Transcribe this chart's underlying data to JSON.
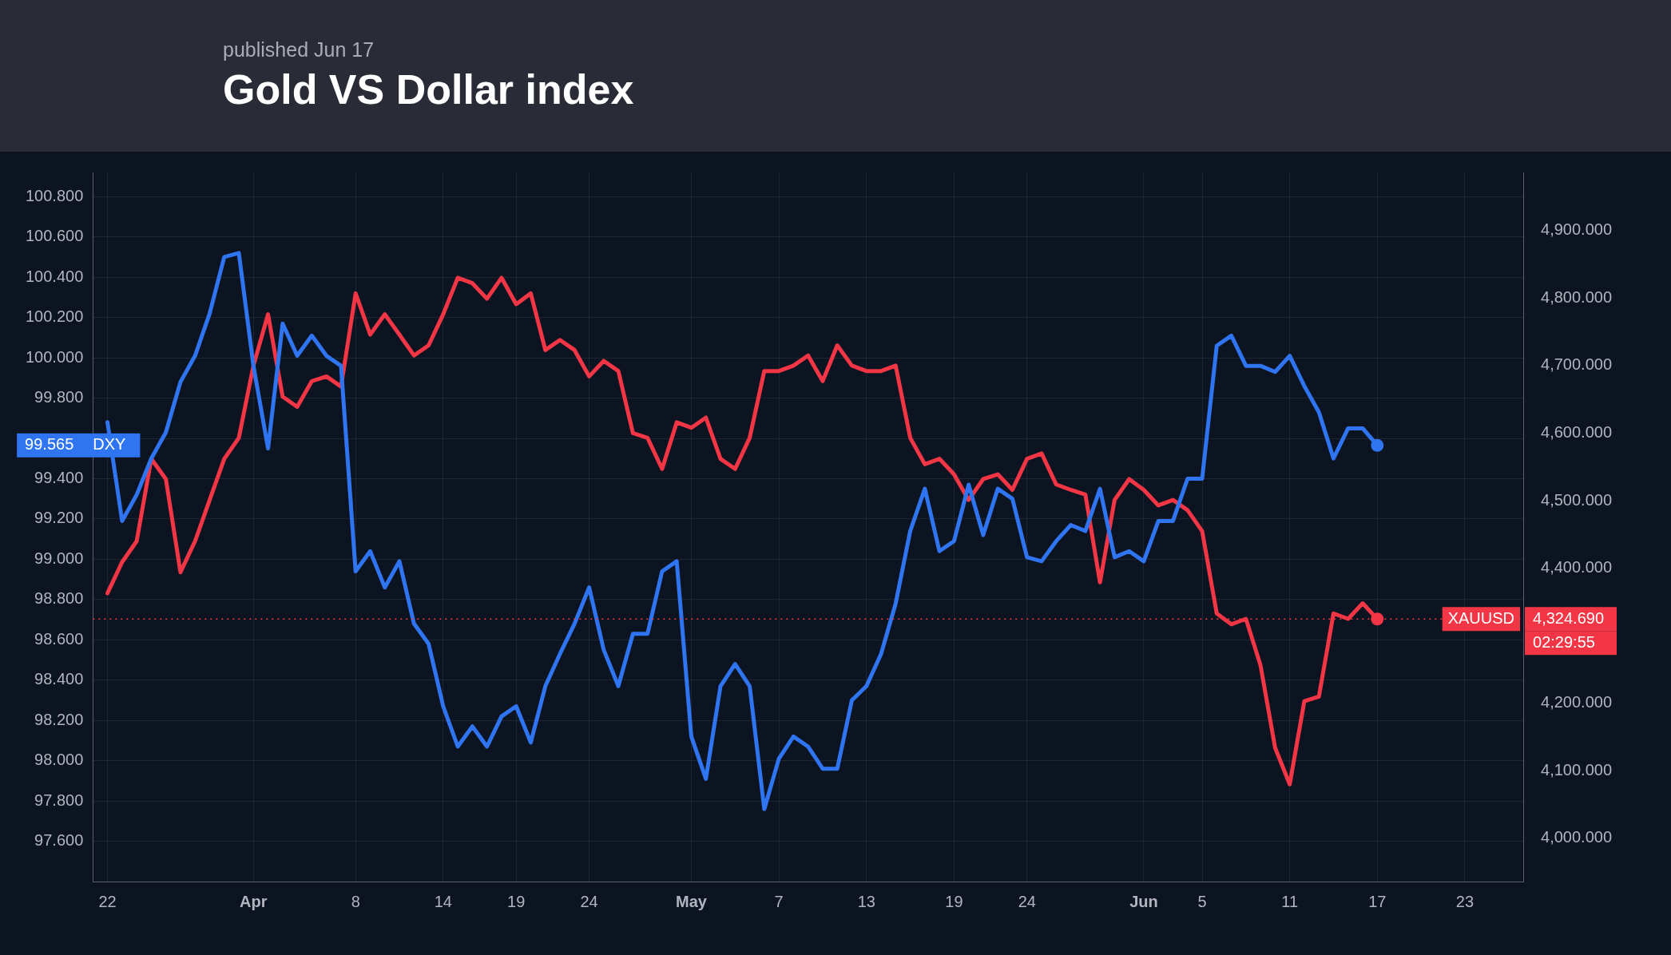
{
  "chart_data": {
    "type": "line",
    "title": "Gold VS Dollar index",
    "subtitle": "published Jun 17",
    "xlim": [
      "--03-21",
      "--06-27"
    ],
    "xticks": [
      {
        "value": "--03-22",
        "label": "22"
      },
      {
        "value": "--04-01",
        "label": "Apr"
      },
      {
        "value": "--04-08",
        "label": "8"
      },
      {
        "value": "--04-14",
        "label": "14"
      },
      {
        "value": "--04-19",
        "label": "19"
      },
      {
        "value": "--04-24",
        "label": "24"
      },
      {
        "value": "--05-01",
        "label": "May"
      },
      {
        "value": "--05-07",
        "label": "7"
      },
      {
        "value": "--05-13",
        "label": "13"
      },
      {
        "value": "--05-19",
        "label": "19"
      },
      {
        "value": "--05-24",
        "label": "24"
      },
      {
        "value": "--06-01",
        "label": "Jun"
      },
      {
        "value": "--06-05",
        "label": "5"
      },
      {
        "value": "--06-11",
        "label": "11"
      },
      {
        "value": "--06-17",
        "label": "17"
      },
      {
        "value": "--06-23",
        "label": "23"
      }
    ],
    "ylim": [
      97.4,
      100.92
    ],
    "yticks": [
      {
        "value": 97.6,
        "label": "97.600"
      },
      {
        "value": 97.8,
        "label": "97.800"
      },
      {
        "value": 98.0,
        "label": "98.000"
      },
      {
        "value": 98.2,
        "label": "98.200"
      },
      {
        "value": 98.4,
        "label": "98.400"
      },
      {
        "value": 98.6,
        "label": "98.600"
      },
      {
        "value": 98.8,
        "label": "98.800"
      },
      {
        "value": 99.0,
        "label": "99.000"
      },
      {
        "value": 99.2,
        "label": "99.200"
      },
      {
        "value": 99.4,
        "label": "99.400"
      },
      {
        "value": 99.6,
        "label": null
      },
      {
        "value": 99.8,
        "label": "99.800"
      },
      {
        "value": 100.0,
        "label": "100.000"
      },
      {
        "value": 100.2,
        "label": "100.200"
      },
      {
        "value": 100.4,
        "label": "100.400"
      },
      {
        "value": 100.6,
        "label": "100.600"
      },
      {
        "value": 100.8,
        "label": "100.800"
      }
    ],
    "y2lim": [
      3936,
      4986
    ],
    "y2ticks": [
      {
        "value": 4000,
        "label": "4,000.000"
      },
      {
        "value": 4100,
        "label": "4,100.000"
      },
      {
        "value": 4200,
        "label": "4,200.000"
      },
      {
        "value": 4400,
        "label": "4,400.000"
      },
      {
        "value": 4500,
        "label": "4,500.000"
      },
      {
        "value": 4600,
        "label": "4,600.000"
      },
      {
        "value": 4700,
        "label": "4,700.000"
      },
      {
        "value": 4800,
        "label": "4,800.000"
      },
      {
        "value": 4900,
        "label": "4,900.000"
      }
    ],
    "x": [
      "--03-22",
      "--03-23",
      "--03-24",
      "--03-25",
      "--03-26",
      "--03-27",
      "--03-28",
      "--03-29",
      "--03-30",
      "--03-31",
      "--04-01",
      "--04-02",
      "--04-03",
      "--04-04",
      "--04-05",
      "--04-06",
      "--04-07",
      "--04-08",
      "--04-09",
      "--04-10",
      "--04-11",
      "--04-12",
      "--04-13",
      "--04-14",
      "--04-15",
      "--04-16",
      "--04-17",
      "--04-18",
      "--04-19",
      "--04-20",
      "--04-21",
      "--04-22",
      "--04-23",
      "--04-24",
      "--04-25",
      "--04-26",
      "--04-27",
      "--04-28",
      "--04-29",
      "--04-30",
      "--05-01",
      "--05-02",
      "--05-03",
      "--05-04",
      "--05-05",
      "--05-06",
      "--05-07",
      "--05-08",
      "--05-09",
      "--05-10",
      "--05-11",
      "--05-12",
      "--05-13",
      "--05-14",
      "--05-15",
      "--05-16",
      "--05-17",
      "--05-18",
      "--05-19",
      "--05-20",
      "--05-21",
      "--05-22",
      "--05-23",
      "--05-24",
      "--05-25",
      "--05-26",
      "--05-27",
      "--05-28",
      "--05-29",
      "--05-30",
      "--05-31",
      "--06-01",
      "--06-02",
      "--06-03",
      "--06-04",
      "--06-05",
      "--06-06",
      "--06-07",
      "--06-08",
      "--06-09",
      "--06-10",
      "--06-11",
      "--06-12",
      "--06-13",
      "--06-14",
      "--06-15",
      "--06-16",
      "--06-17"
    ],
    "series": [
      {
        "name": "DXY",
        "color": "#2f74f0",
        "axis": "y",
        "values": [
          99.68,
          99.19,
          99.32,
          99.5,
          99.63,
          99.88,
          100.01,
          100.22,
          100.5,
          100.52,
          99.96,
          99.55,
          100.17,
          100.01,
          100.11,
          100.01,
          99.96,
          98.94,
          99.04,
          98.86,
          98.99,
          98.68,
          98.58,
          98.27,
          98.07,
          98.17,
          98.07,
          98.22,
          98.27,
          98.09,
          98.37,
          98.53,
          98.68,
          98.86,
          98.55,
          98.37,
          98.63,
          98.63,
          98.94,
          98.99,
          98.12,
          97.91,
          98.37,
          98.48,
          98.37,
          97.76,
          98.01,
          98.12,
          98.07,
          97.96,
          97.96,
          98.3,
          98.37,
          98.53,
          98.78,
          99.14,
          99.35,
          99.04,
          99.09,
          99.37,
          99.12,
          99.35,
          99.3,
          99.01,
          98.99,
          99.09,
          99.17,
          99.14,
          99.35,
          99.01,
          99.04,
          98.99,
          99.19,
          99.19,
          99.4,
          99.4,
          100.06,
          100.11,
          99.96,
          99.96,
          99.93,
          100.01,
          99.86,
          99.73,
          99.5,
          99.65,
          99.65,
          99.565
        ]
      },
      {
        "name": "XAUUSD",
        "color": "#f23645",
        "axis": "y2",
        "values": [
          4363,
          4409,
          4440,
          4562,
          4532,
          4394,
          4440,
          4501,
          4562,
          4593,
          4700,
          4776,
          4654,
          4639,
          4677,
          4684,
          4669,
          4807,
          4746,
          4776,
          4746,
          4715,
          4730,
          4776,
          4830,
          4822,
          4799,
          4830,
          4791,
          4807,
          4723,
          4738,
          4723,
          4684,
          4707,
          4692,
          4600,
          4593,
          4547,
          4616,
          4608,
          4623,
          4562,
          4547,
          4593,
          4692,
          4692,
          4700,
          4715,
          4677,
          4730,
          4700,
          4692,
          4692,
          4700,
          4593,
          4554,
          4562,
          4539,
          4501,
          4532,
          4539,
          4516,
          4562,
          4570,
          4524,
          4516,
          4509,
          4379,
          4501,
          4532,
          4516,
          4493,
          4501,
          4486,
          4455,
          4333,
          4317,
          4325,
          4256,
          4134,
          4080,
          4203,
          4210,
          4333,
          4325,
          4348,
          4324.69
        ]
      }
    ],
    "ref_lines": [
      {
        "axis": "y2",
        "value": 4324.69,
        "color": "#f23645",
        "line_style": "dotted"
      }
    ],
    "annotations": [
      "99.565",
      "4,324.690",
      "02:29:55"
    ],
    "grid": true,
    "legend": false,
    "marker": "none",
    "line_style": "solid"
  }
}
